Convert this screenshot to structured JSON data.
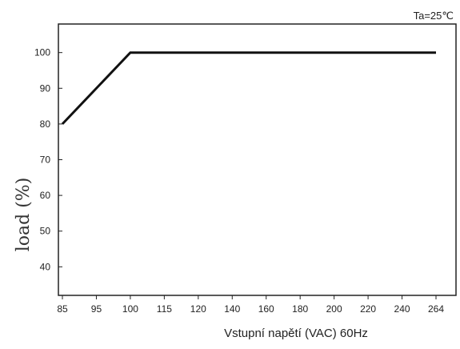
{
  "chart_data": {
    "type": "line",
    "annotation": "Ta=25℃",
    "xlabel": "Vstupní napětí (VAC) 60Hz",
    "ylabel": "load (%)",
    "x_tick_labels": [
      "85",
      "95",
      "100",
      "115",
      "120",
      "140",
      "160",
      "180",
      "200",
      "220",
      "240",
      "264"
    ],
    "y_ticks": [
      40,
      50,
      60,
      70,
      80,
      90,
      100
    ],
    "ylim": [
      32,
      108
    ],
    "grid": false,
    "legend": "none",
    "series": [
      {
        "x": [
          "85",
          "100",
          "264"
        ],
        "y": [
          80,
          100,
          100
        ]
      }
    ],
    "line_color": "#111111"
  }
}
